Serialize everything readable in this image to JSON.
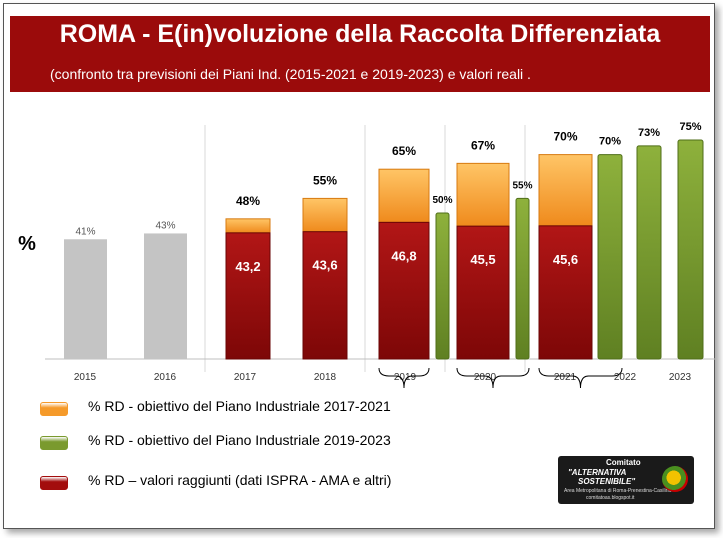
{
  "header": {
    "title": "ROMA - E(in)voluzione  della Raccolta Differenziata",
    "subtitle": "(confronto tra previsioni dei Piani Ind. (2015-2021 e 2019-2023) e valori reali ."
  },
  "chart_data": {
    "type": "bar",
    "ylabel": "%",
    "categories": [
      "2015",
      "2016",
      "2017",
      "2018",
      "2019",
      "2020",
      "2021",
      "2022",
      "2023"
    ],
    "series": [
      {
        "name": "% RD – valori raggiunti (dati ISPRA - AMA e altri)",
        "color": "#a30d0d",
        "values": [
          null,
          null,
          43.2,
          43.6,
          46.8,
          45.5,
          45.6,
          null,
          null
        ],
        "labels": [
          "",
          "",
          "43,2",
          "43,6",
          "46,8",
          "45,5",
          "45,6",
          "",
          ""
        ]
      },
      {
        "name": "% RD - obiettivo del Piano Industriale 2017-2021",
        "color": "#f59a2a",
        "values": [
          null,
          null,
          48,
          55,
          65,
          67,
          70,
          null,
          null
        ],
        "labels": [
          "",
          "",
          "48%",
          "55%",
          "65%",
          "67%",
          "70%",
          "",
          ""
        ]
      },
      {
        "name": "% RD - obiettivo del Piano Industriale 2019-2023",
        "color": "#7a9a2e",
        "values": [
          null,
          null,
          null,
          null,
          50,
          55,
          70,
          73,
          75
        ],
        "labels": [
          "",
          "",
          "",
          "",
          "50%",
          "55%",
          "70%",
          "73%",
          "75%"
        ]
      },
      {
        "name": "",
        "color": "#c4c4c4",
        "values": [
          41,
          43,
          null,
          null,
          null,
          null,
          null,
          null,
          null
        ],
        "labels": [
          "41%",
          "43%",
          "",
          "",
          "",
          "",
          "",
          "",
          ""
        ]
      }
    ],
    "ylim": [
      0,
      80
    ],
    "grid": false,
    "legend_position": "bottom-left"
  },
  "legend": [
    {
      "label": "% RD - obiettivo del Piano Industriale 2017-2021",
      "color": "#f59a2a"
    },
    {
      "label": "% RD - obiettivo del Piano Industriale 2019-2023",
      "color": "#7a9a2e"
    },
    {
      "label": "% RD – valori raggiunti (dati ISPRA - AMA e altri)",
      "color": "#a30d0d"
    }
  ],
  "logo": {
    "line1": "Comitato",
    "line2": "\"ALTERNATIVA",
    "line3": "SOSTENIBILE\"",
    "line4": "Area Metropolitana di Roma-Prenestina-Casilina",
    "line5": "comitatoas.blogspot.it"
  }
}
